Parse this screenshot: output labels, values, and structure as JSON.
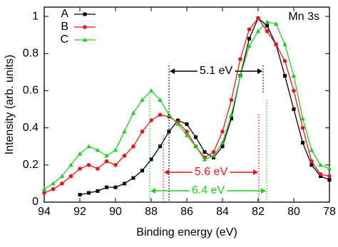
{
  "chart_data": {
    "type": "line",
    "title": "Mn 3s",
    "x_label": "Binding energy (eV)",
    "y_label": "Intensity (arb. units)",
    "x": [
      94,
      93.5,
      93,
      92.5,
      92,
      91.5,
      91,
      90.5,
      90,
      89.5,
      89,
      88.5,
      88,
      87.5,
      87,
      86.5,
      86,
      85.5,
      85,
      84.5,
      84,
      83.5,
      83,
      82.5,
      82,
      81.5,
      81,
      80.5,
      80,
      79.5,
      79,
      78.5,
      78
    ],
    "series": [
      {
        "name": "A",
        "color": "#000000",
        "marker": "square",
        "values": [
          null,
          null,
          null,
          null,
          0.04,
          0.05,
          0.06,
          0.08,
          0.08,
          0.1,
          0.13,
          0.17,
          0.23,
          0.3,
          0.38,
          0.44,
          0.42,
          0.35,
          0.27,
          0.24,
          0.3,
          0.45,
          0.68,
          0.88,
          0.99,
          0.95,
          0.85,
          0.68,
          0.5,
          0.32,
          0.2,
          0.14,
          0.12
        ]
      },
      {
        "name": "B",
        "color": "#e8151b",
        "marker": "circle",
        "values": [
          0.05,
          0.07,
          0.1,
          0.14,
          0.18,
          0.2,
          0.18,
          0.22,
          0.2,
          0.25,
          0.3,
          0.38,
          0.44,
          0.47,
          0.46,
          0.43,
          0.38,
          0.3,
          0.24,
          0.27,
          0.38,
          0.55,
          0.77,
          0.93,
          0.99,
          0.92,
          0.85,
          0.76,
          0.6,
          0.4,
          0.22,
          0.15,
          0.14
        ]
      },
      {
        "name": "C",
        "color": "#22cc22",
        "marker": "triangle",
        "values": [
          0.07,
          0.1,
          0.14,
          0.2,
          0.26,
          0.3,
          0.28,
          0.25,
          0.28,
          0.38,
          0.48,
          0.55,
          0.6,
          0.55,
          0.47,
          0.42,
          0.36,
          0.3,
          0.23,
          0.25,
          0.32,
          0.47,
          0.68,
          0.84,
          0.92,
          0.97,
          0.96,
          0.85,
          0.68,
          0.45,
          0.28,
          0.2,
          0.18
        ]
      }
    ],
    "annotations": [
      "5.1 eV",
      "5.6 eV",
      "6.4 eV"
    ],
    "xlim": [
      94,
      78
    ],
    "xticks": [
      94,
      92,
      90,
      88,
      86,
      84,
      82,
      80,
      78
    ],
    "ylim": [
      0,
      1.05
    ],
    "yticks": [
      0,
      0.2,
      0.4,
      0.6,
      0.8,
      1
    ],
    "legend": "upper left"
  }
}
